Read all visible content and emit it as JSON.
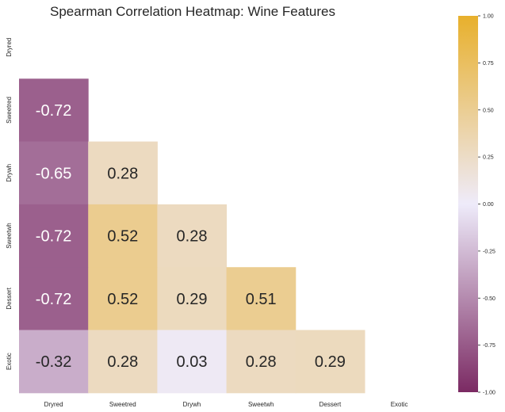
{
  "chart_data": {
    "type": "heatmap",
    "title": "Spearman Correlation Heatmap: Wine Features",
    "x_labels": [
      "Dryred",
      "Sweetred",
      "Drywh",
      "Sweetwh",
      "Dessert",
      "Exotic"
    ],
    "y_labels": [
      "Dryred",
      "Sweetred",
      "Drywh",
      "Sweetwh",
      "Dessert",
      "Exotic"
    ],
    "mask": "upper triangle and diagonal hidden",
    "cells": [
      {
        "row": 1,
        "col": 0,
        "value": -0.72,
        "label": "-0.72"
      },
      {
        "row": 2,
        "col": 0,
        "value": -0.65,
        "label": "-0.65"
      },
      {
        "row": 2,
        "col": 1,
        "value": 0.28,
        "label": "0.28"
      },
      {
        "row": 3,
        "col": 0,
        "value": -0.72,
        "label": "-0.72"
      },
      {
        "row": 3,
        "col": 1,
        "value": 0.52,
        "label": "0.52"
      },
      {
        "row": 3,
        "col": 2,
        "value": 0.28,
        "label": "0.28"
      },
      {
        "row": 4,
        "col": 0,
        "value": -0.72,
        "label": "-0.72"
      },
      {
        "row": 4,
        "col": 1,
        "value": 0.52,
        "label": "0.52"
      },
      {
        "row": 4,
        "col": 2,
        "value": 0.29,
        "label": "0.29"
      },
      {
        "row": 4,
        "col": 3,
        "value": 0.51,
        "label": "0.51"
      },
      {
        "row": 5,
        "col": 0,
        "value": -0.32,
        "label": "-0.32"
      },
      {
        "row": 5,
        "col": 1,
        "value": 0.28,
        "label": "0.28"
      },
      {
        "row": 5,
        "col": 2,
        "value": 0.03,
        "label": "0.03"
      },
      {
        "row": 5,
        "col": 3,
        "value": 0.28,
        "label": "0.28"
      },
      {
        "row": 5,
        "col": 4,
        "value": 0.29,
        "label": "0.29"
      }
    ],
    "colorbar": {
      "range": [
        -1.0,
        1.0
      ],
      "ticks": [
        "1.00",
        "0.75",
        "0.50",
        "0.25",
        "0.00",
        "-0.25",
        "-0.50",
        "-0.75",
        "-1.00"
      ],
      "colors": {
        "low": "#7b2a63",
        "mid": "#eeebfa",
        "high": "#e8b02c"
      }
    },
    "annotation_colors": {
      "dark_cell_text": "#ffffff",
      "light_cell_text": "#262626"
    },
    "grid": false
  }
}
